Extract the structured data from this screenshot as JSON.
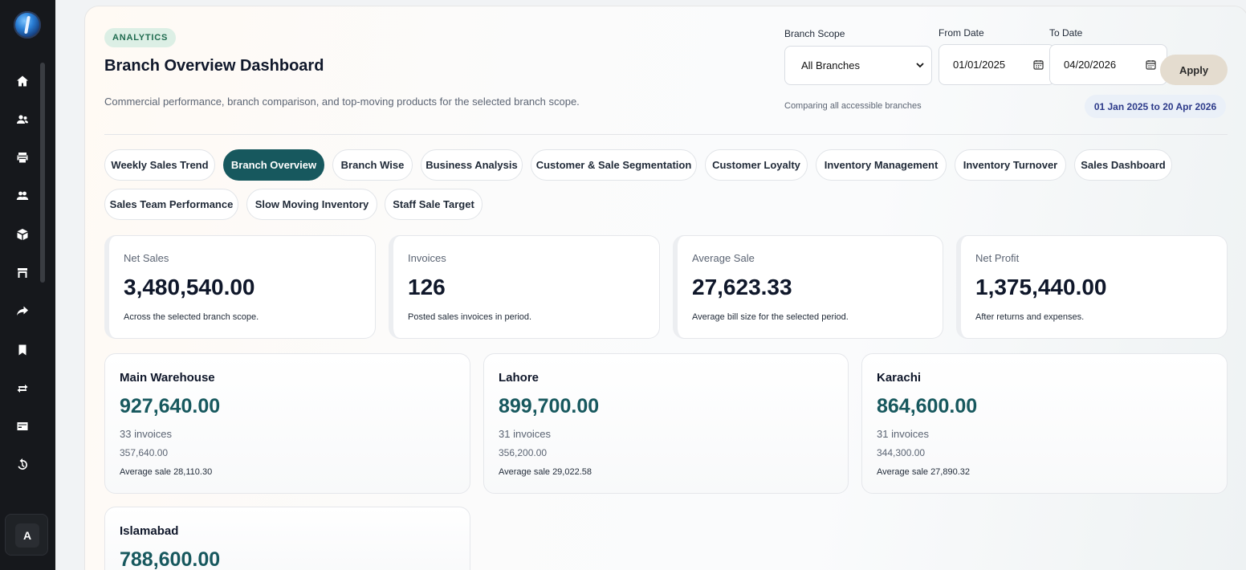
{
  "sidebar": {
    "icons": [
      "home-icon",
      "users-icon",
      "printer-icon",
      "team-icon",
      "box-icon",
      "store-icon",
      "share-icon",
      "bookmark-icon",
      "exchange-icon",
      "card-icon",
      "history-icon"
    ],
    "avatar_initial": "A"
  },
  "header": {
    "badge": "ANALYTICS",
    "title": "Branch Overview Dashboard",
    "subtitle": "Commercial performance, branch comparison, and top-moving products for the selected branch scope."
  },
  "filters": {
    "branch_scope_label": "Branch Scope",
    "branch_scope_value": "All Branches",
    "from_label": "From Date",
    "from_value": "01/01/2025",
    "to_label": "To Date",
    "to_value": "04/20/2026",
    "apply_label": "Apply",
    "scope_note": "Comparing all accessible branches",
    "range_text": "01 Jan 2025 to 20 Apr 2026"
  },
  "tabs": [
    {
      "label": "Weekly Sales Trend",
      "active": false
    },
    {
      "label": "Branch Overview",
      "active": true
    },
    {
      "label": "Branch Wise",
      "active": false
    },
    {
      "label": "Business Analysis",
      "active": false
    },
    {
      "label": "Customer & Sale Segmentation",
      "active": false
    },
    {
      "label": "Customer Loyalty",
      "active": false
    },
    {
      "label": "Inventory Management",
      "active": false
    },
    {
      "label": "Inventory Turnover",
      "active": false
    },
    {
      "label": "Sales Dashboard",
      "active": false
    },
    {
      "label": "Sales Team Performance",
      "active": false
    },
    {
      "label": "Slow Moving Inventory",
      "active": false
    },
    {
      "label": "Staff Sale Target",
      "active": false
    }
  ],
  "kpis": [
    {
      "label": "Net Sales",
      "value": "3,480,540.00",
      "note": "Across the selected branch scope."
    },
    {
      "label": "Invoices",
      "value": "126",
      "note": "Posted sales invoices in period."
    },
    {
      "label": "Average Sale",
      "value": "27,623.33",
      "note": "Average bill size for the selected period."
    },
    {
      "label": "Net Profit",
      "value": "1,375,440.00",
      "note": "After returns and expenses."
    }
  ],
  "branches": [
    {
      "name": "Main Warehouse",
      "value": "927,640.00",
      "invoices": "33 invoices",
      "secondary": "357,640.00",
      "avg": "Average sale 28,110.30"
    },
    {
      "name": "Lahore",
      "value": "899,700.00",
      "invoices": "31 invoices",
      "secondary": "356,200.00",
      "avg": "Average sale 29,022.58"
    },
    {
      "name": "Karachi",
      "value": "864,600.00",
      "invoices": "31 invoices",
      "secondary": "344,300.00",
      "avg": "Average sale 27,890.32"
    },
    {
      "name": "Islamabad",
      "value": "788,600.00",
      "invoices": "",
      "secondary": "",
      "avg": ""
    }
  ],
  "colors": {
    "accent": "#17585e",
    "sidebar_bg": "#16181c",
    "badge_bg": "#dcefe5",
    "range_text": "#2c3a8a"
  }
}
